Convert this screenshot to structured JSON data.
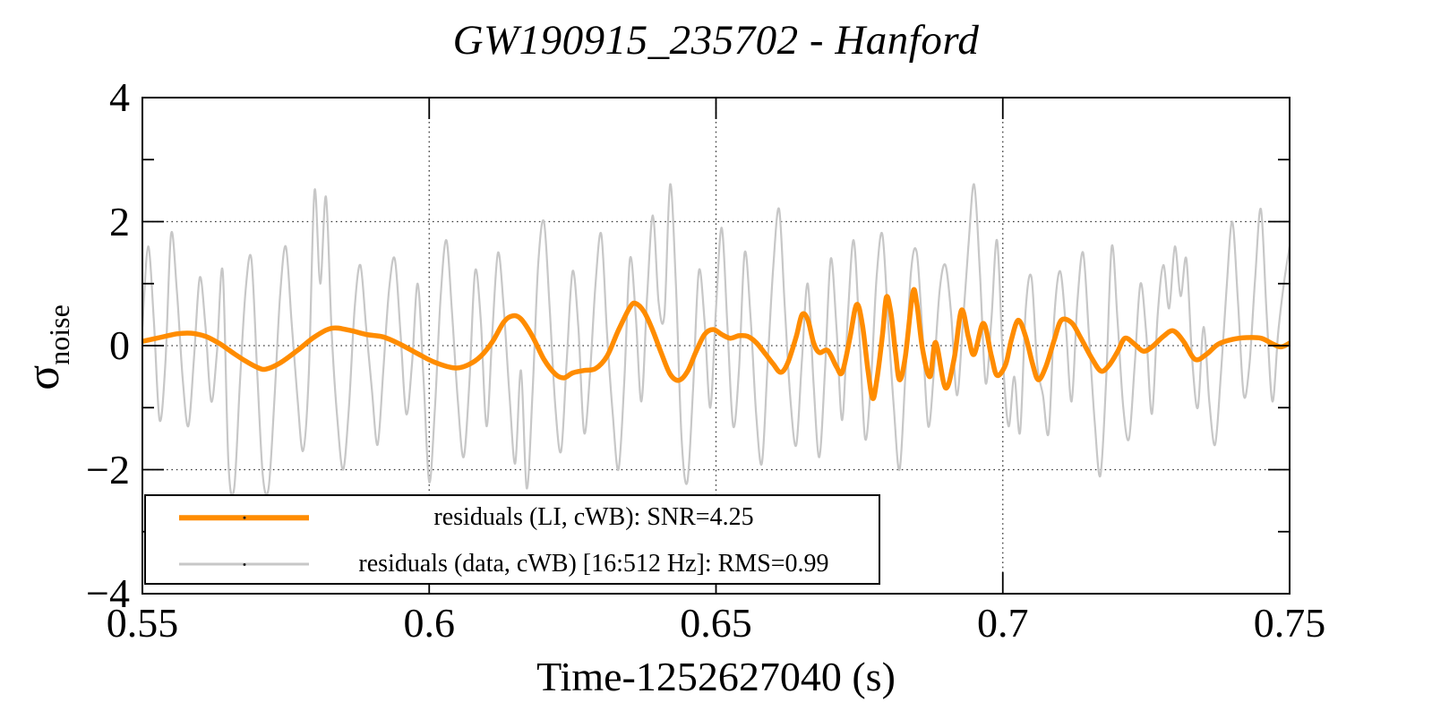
{
  "figure": {
    "background": "#ffffff"
  },
  "chart_data": {
    "type": "line",
    "title": "GW190915_235702 - Hanford",
    "xlabel": "Time-1252627040 (s)",
    "ylabel": "σ_noise",
    "ylabel_symbol": "σ",
    "ylabel_subscript": "noise",
    "xlim": [
      0.55,
      0.75
    ],
    "ylim": [
      -4,
      4
    ],
    "x_ticks": {
      "major": [
        0.55,
        0.6,
        0.65,
        0.7,
        0.75
      ],
      "labels": [
        "0.55",
        "0.6",
        "0.65",
        "0.7",
        "0.75"
      ]
    },
    "y_ticks": {
      "major": [
        4,
        2,
        0,
        -2,
        -4
      ],
      "labels": [
        "4",
        "2",
        "0",
        "−2",
        "−4"
      ],
      "minor": [
        3,
        1,
        -1,
        -3
      ]
    },
    "grid": {
      "x": [
        0.6,
        0.65,
        0.7
      ],
      "y": [
        2,
        0,
        -2
      ],
      "style": "dotted"
    },
    "legend": {
      "position": "bottom-left",
      "border": "#000000",
      "background": "#ffffff"
    },
    "series": [
      {
        "name": "residuals (LI, cWB): SNR=4.25",
        "color": "#ff8c00",
        "line_width": 5.5,
        "points": [
          [
            0.55,
            0.07
          ],
          [
            0.553,
            0.13
          ],
          [
            0.556,
            0.19
          ],
          [
            0.5585,
            0.2
          ],
          [
            0.561,
            0.15
          ],
          [
            0.5635,
            0.03
          ],
          [
            0.566,
            -0.13
          ],
          [
            0.568,
            -0.25
          ],
          [
            0.57,
            -0.35
          ],
          [
            0.5715,
            -0.38
          ],
          [
            0.574,
            -0.28
          ],
          [
            0.577,
            -0.08
          ],
          [
            0.58,
            0.14
          ],
          [
            0.583,
            0.28
          ],
          [
            0.586,
            0.25
          ],
          [
            0.589,
            0.18
          ],
          [
            0.592,
            0.14
          ],
          [
            0.595,
            0.02
          ],
          [
            0.598,
            -0.13
          ],
          [
            0.601,
            -0.27
          ],
          [
            0.6045,
            -0.36
          ],
          [
            0.607,
            -0.3
          ],
          [
            0.609,
            -0.17
          ],
          [
            0.611,
            0.06
          ],
          [
            0.613,
            0.38
          ],
          [
            0.6145,
            0.48
          ],
          [
            0.616,
            0.43
          ],
          [
            0.618,
            0.15
          ],
          [
            0.62,
            -0.22
          ],
          [
            0.622,
            -0.46
          ],
          [
            0.6235,
            -0.52
          ],
          [
            0.625,
            -0.44
          ],
          [
            0.627,
            -0.4
          ],
          [
            0.629,
            -0.37
          ],
          [
            0.631,
            -0.17
          ],
          [
            0.633,
            0.25
          ],
          [
            0.635,
            0.62
          ],
          [
            0.636,
            0.68
          ],
          [
            0.6375,
            0.54
          ],
          [
            0.639,
            0.24
          ],
          [
            0.6405,
            -0.13
          ],
          [
            0.642,
            -0.46
          ],
          [
            0.6435,
            -0.56
          ],
          [
            0.645,
            -0.42
          ],
          [
            0.6465,
            -0.1
          ],
          [
            0.648,
            0.18
          ],
          [
            0.6495,
            0.26
          ],
          [
            0.651,
            0.18
          ],
          [
            0.6525,
            0.12
          ],
          [
            0.654,
            0.16
          ],
          [
            0.6555,
            0.15
          ],
          [
            0.657,
            0.05
          ],
          [
            0.6585,
            -0.12
          ],
          [
            0.66,
            -0.3
          ],
          [
            0.6613,
            -0.43
          ],
          [
            0.6625,
            -0.28
          ],
          [
            0.664,
            0.15
          ],
          [
            0.665,
            0.5
          ],
          [
            0.666,
            0.42
          ],
          [
            0.667,
            0.05
          ],
          [
            0.668,
            -0.11
          ],
          [
            0.6695,
            -0.08
          ],
          [
            0.671,
            -0.34
          ],
          [
            0.672,
            -0.43
          ],
          [
            0.6733,
            0.1
          ],
          [
            0.6745,
            0.66
          ],
          [
            0.6755,
            0.35
          ],
          [
            0.6765,
            -0.4
          ],
          [
            0.6773,
            -0.85
          ],
          [
            0.678,
            -0.58
          ],
          [
            0.679,
            0.15
          ],
          [
            0.6797,
            0.78
          ],
          [
            0.6805,
            0.52
          ],
          [
            0.6813,
            -0.12
          ],
          [
            0.682,
            -0.55
          ],
          [
            0.683,
            -0.18
          ],
          [
            0.6843,
            0.85
          ],
          [
            0.685,
            0.68
          ],
          [
            0.686,
            -0.05
          ],
          [
            0.6873,
            -0.5
          ],
          [
            0.6883,
            0.05
          ],
          [
            0.69,
            -0.68
          ],
          [
            0.6915,
            -0.22
          ],
          [
            0.6928,
            0.57
          ],
          [
            0.694,
            0.14
          ],
          [
            0.695,
            -0.14
          ],
          [
            0.6966,
            0.36
          ],
          [
            0.698,
            -0.16
          ],
          [
            0.699,
            -0.48
          ],
          [
            0.7005,
            -0.3
          ],
          [
            0.7015,
            0.1
          ],
          [
            0.7027,
            0.41
          ],
          [
            0.704,
            0.14
          ],
          [
            0.7052,
            -0.3
          ],
          [
            0.7062,
            -0.55
          ],
          [
            0.7075,
            -0.34
          ],
          [
            0.709,
            0.1
          ],
          [
            0.7102,
            0.41
          ],
          [
            0.712,
            0.37
          ],
          [
            0.7135,
            0.14
          ],
          [
            0.7155,
            -0.2
          ],
          [
            0.7171,
            -0.41
          ],
          [
            0.7185,
            -0.32
          ],
          [
            0.72,
            -0.1
          ],
          [
            0.7213,
            0.12
          ],
          [
            0.723,
            0.02
          ],
          [
            0.7245,
            -0.09
          ],
          [
            0.726,
            -0.02
          ],
          [
            0.728,
            0.15
          ],
          [
            0.7297,
            0.24
          ],
          [
            0.7315,
            0.07
          ],
          [
            0.7335,
            -0.22
          ],
          [
            0.7355,
            -0.14
          ],
          [
            0.7375,
            0.02
          ],
          [
            0.74,
            0.1
          ],
          [
            0.7425,
            0.13
          ],
          [
            0.745,
            0.12
          ],
          [
            0.747,
            0.03
          ],
          [
            0.7485,
            -0.02
          ],
          [
            0.75,
            0.04
          ]
        ]
      },
      {
        "name": "residuals (data, cWB) [16:512 Hz]: RMS=0.99",
        "color": "#c7c7c7",
        "line_width": 2.2,
        "t0": 0.55,
        "dt": 0.001,
        "values": [
          0.3,
          1.6,
          0.4,
          -1.2,
          -0.3,
          1.8,
          0.9,
          -0.5,
          -1.3,
          -0.2,
          1.1,
          0.3,
          -0.9,
          -0.1,
          1.2,
          -1.9,
          -2.3,
          -0.6,
          0.9,
          1.4,
          -0.4,
          -2.1,
          -2.3,
          -0.9,
          0.8,
          1.6,
          0.4,
          -0.8,
          -1.7,
          -0.5,
          2.5,
          1.0,
          2.4,
          0.2,
          -1.2,
          -2.0,
          -1.0,
          0.6,
          1.3,
          0.3,
          -0.7,
          -1.6,
          -0.4,
          0.9,
          1.4,
          0.2,
          -1.1,
          -0.3,
          1.0,
          -0.5,
          -2.2,
          -1.0,
          0.8,
          1.7,
          0.5,
          -0.9,
          -1.8,
          -0.6,
          1.2,
          0.4,
          -1.3,
          0.2,
          1.5,
          0.6,
          -0.8,
          -1.9,
          -0.4,
          -2.3,
          -0.8,
          1.3,
          2.0,
          0.6,
          -1.0,
          -1.7,
          -0.2,
          1.2,
          0.3,
          -1.4,
          -0.5,
          1.0,
          1.8,
          0.2,
          -1.1,
          -2.0,
          -0.6,
          1.4,
          0.5,
          -0.9,
          0.8,
          2.1,
          0.7,
          0.5,
          2.6,
          1.0,
          -1.5,
          -2.2,
          -0.7,
          1.2,
          0.4,
          -1.0,
          0.6,
          1.9,
          0.3,
          -1.3,
          -0.4,
          1.5,
          0.5,
          -1.1,
          -1.9,
          -0.3,
          1.3,
          2.2,
          0.6,
          -0.9,
          -1.6,
          -0.2,
          1.0,
          -0.6,
          -1.8,
          -0.4,
          1.4,
          0.3,
          -1.2,
          0.5,
          1.7,
          0.2,
          -1.5,
          -0.6,
          1.1,
          1.8,
          0.4,
          -1.0,
          -2.0,
          -0.5,
          1.2,
          1.5,
          0.2,
          -1.3,
          -0.4,
          0.9,
          1.3,
          0.5,
          -0.8,
          0.3,
          1.6,
          2.6,
          1.2,
          -0.6,
          0.4,
          1.7,
          -0.2,
          -1.3,
          -0.5,
          -1.4,
          0.6,
          1.1,
          -0.3,
          -0.8,
          -1.4,
          0.5,
          1.2,
          0.3,
          -0.9,
          0.7,
          1.5,
          0.2,
          -1.2,
          -2.1,
          -0.6,
          1.6,
          0.4,
          -1.0,
          -1.5,
          -0.3,
          1.0,
          0.2,
          -1.1,
          0.5,
          1.3,
          0.6,
          1.6,
          0.8,
          1.4,
          -0.2,
          -1.0,
          0.3,
          -0.9,
          -1.6,
          -0.5,
          0.9,
          2.0,
          0.7,
          -0.8,
          -0.3,
          1.1,
          2.2,
          0.5,
          -0.9,
          0.2,
          1.0,
          1.6
        ]
      }
    ]
  }
}
